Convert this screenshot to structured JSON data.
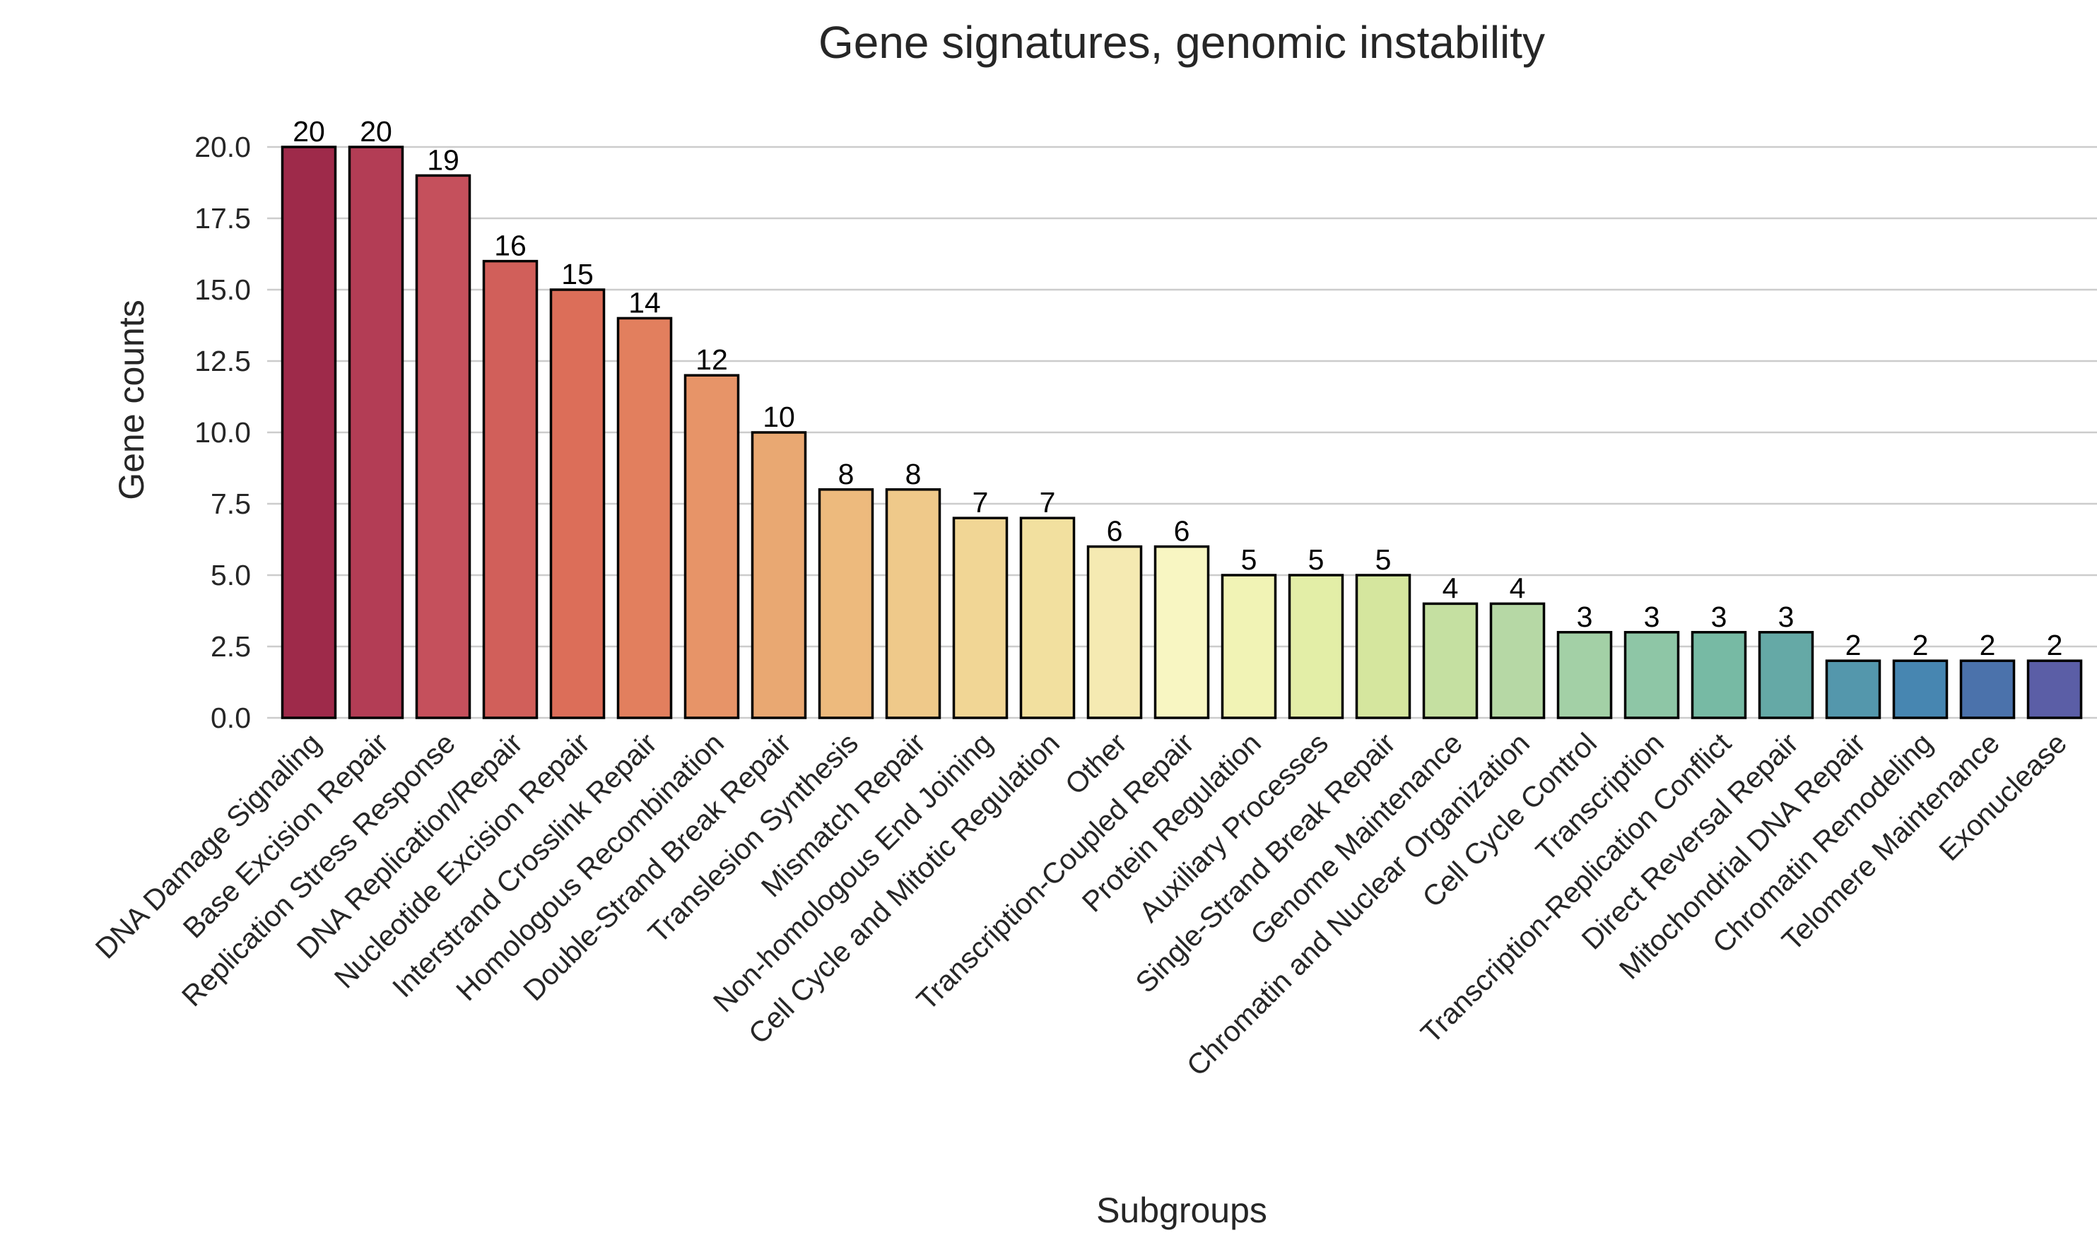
{
  "chart_data": {
    "type": "bar",
    "title": "Gene signatures, genomic instability",
    "xlabel": "Subgroups",
    "ylabel": "Gene counts",
    "ylim": [
      0,
      20
    ],
    "yticks": [
      "0.0",
      "2.5",
      "5.0",
      "7.5",
      "10.0",
      "12.5",
      "15.0",
      "17.5",
      "20.0"
    ],
    "grid": "horizontal",
    "categories": [
      "DNA Damage Signaling",
      "Base Excision Repair",
      "Replication Stress Response",
      "DNA Replication/Repair",
      "Nucleotide Excision Repair",
      "Interstrand Crosslink Repair",
      "Homologous Recombination",
      "Double-Strand Break Repair",
      "Translesion Synthesis",
      "Mismatch Repair",
      "Non-homologous End Joining",
      "Cell Cycle and Mitotic Regulation",
      "Other",
      "Transcription-Coupled Repair",
      "Protein Regulation",
      "Auxiliary Processes",
      "Single-Strand Break Repair",
      "Genome Maintenance",
      "Chromatin and Nuclear Organization",
      "Cell Cycle Control",
      "Transcription",
      "Transcription-Replication Conflict",
      "Direct Reversal Repair",
      "Mitochondrial DNA Repair",
      "Chromatin Remodeling",
      "Telomere Maintenance",
      "Exonuclease"
    ],
    "values": [
      20,
      20,
      19,
      16,
      15,
      14,
      12,
      10,
      8,
      8,
      7,
      7,
      6,
      6,
      5,
      5,
      5,
      4,
      4,
      3,
      3,
      3,
      3,
      2,
      2,
      2,
      2
    ],
    "data_labels": [
      "20",
      "20",
      "19",
      "16",
      "15",
      "14",
      "12",
      "10",
      "8",
      "8",
      "7",
      "7",
      "6",
      "6",
      "5",
      "5",
      "5",
      "4",
      "4",
      "3",
      "3",
      "3",
      "3",
      "2",
      "2",
      "2",
      "2"
    ],
    "colors": [
      "#9e2a4a",
      "#b33d55",
      "#c5505c",
      "#d15f5a",
      "#dc6e59",
      "#e27f5e",
      "#e79468",
      "#e9a872",
      "#edba7d",
      "#efc98a",
      "#f1d695",
      "#f2e09f",
      "#f5eab2",
      "#f8f6c2",
      "#f1f3b5",
      "#e3eea7",
      "#d5e69e",
      "#c5e0a1",
      "#b6d8a5",
      "#a3d0a6",
      "#8ec6a6",
      "#77baa4",
      "#65a9a6",
      "#5497ac",
      "#4786b1",
      "#4b72ab",
      "#5b5ea6"
    ]
  }
}
